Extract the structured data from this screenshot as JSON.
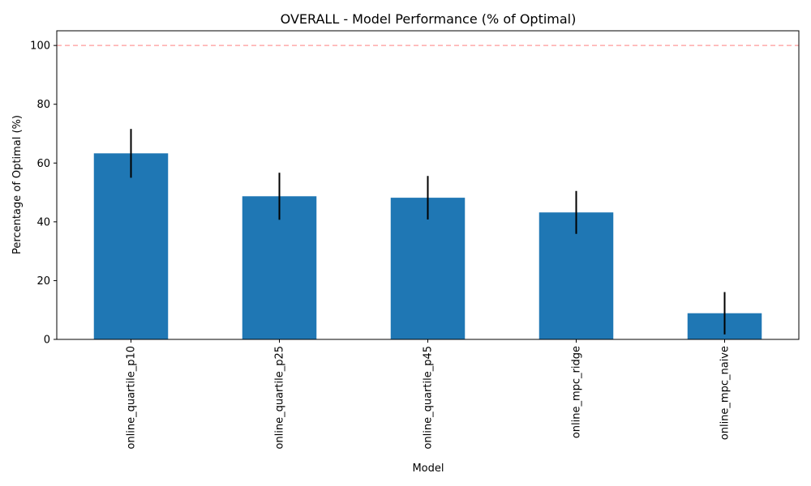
{
  "chart_data": {
    "type": "bar",
    "title": "OVERALL - Model Performance (% of Optimal)",
    "xlabel": "Model",
    "ylabel": "Percentage of Optimal (%)",
    "categories": [
      "online_quartile_p10",
      "online_quartile_p25",
      "online_quartile_p45",
      "online_mpc_ridge",
      "online_mpc_naive"
    ],
    "values": [
      63.3,
      48.7,
      48.2,
      43.2,
      8.9
    ],
    "error": [
      8.3,
      8.0,
      7.4,
      7.3,
      7.2
    ],
    "ylim": [
      0,
      105
    ],
    "yticks": [
      0,
      20,
      40,
      60,
      80,
      100
    ],
    "reference_line": {
      "y": 100,
      "style": "dashed",
      "color": "#ffaaaa"
    },
    "bar_color": "#1f77b4",
    "error_color": "#000000",
    "grid": false,
    "tick_label_rotation": "vertical"
  }
}
